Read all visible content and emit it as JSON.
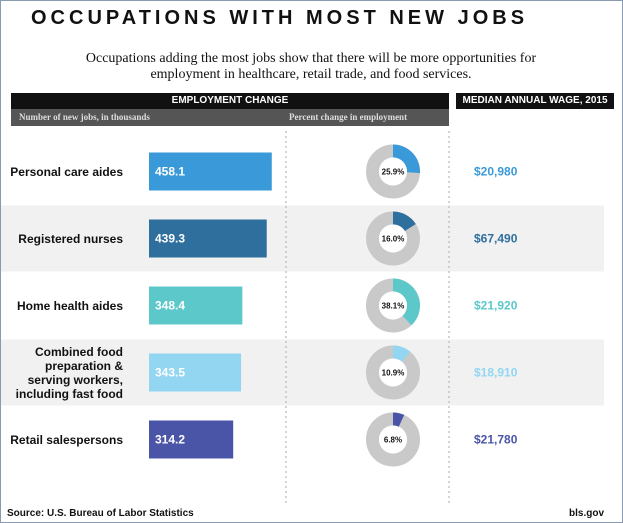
{
  "chart_data": {
    "type": "bar",
    "title": "OCCUPATIONS WITH MOST NEW JOBS",
    "subtitle": "Occupations adding the most jobs show that there will be more opportunities for employment in healthcare, retail trade, and food services.",
    "header_left": "EMPLOYMENT CHANGE",
    "header_right": "MEDIAN ANNUAL WAGE, 2015",
    "value_axis_label": "Number of new jobs, in thousands",
    "percent_axis_label": "Percent change in employment",
    "categories": [
      "Personal care aides",
      "Registered nurses",
      "Home health aides",
      "Combined food preparation & serving workers, including fast food",
      "Retail salespersons"
    ],
    "values": [
      458.1,
      439.3,
      348.4,
      343.5,
      314.2
    ],
    "percent_values": [
      25.9,
      16.0,
      38.1,
      10.9,
      6.8
    ],
    "percent_value_labels": [
      "25.9%",
      "16.0%",
      "38.1%",
      "10.9%",
      "6.8%"
    ],
    "wages": [
      "$20,980",
      "$67,490",
      "$21,920",
      "$18,910",
      "$21,780"
    ],
    "colors": [
      "#3a9ad9",
      "#2e6f9e",
      "#5cc8c9",
      "#92d6f2",
      "#4b55a8"
    ],
    "source": "Source: U.S. Bureau of Labor Statistics",
    "credit": "bls.gov"
  }
}
